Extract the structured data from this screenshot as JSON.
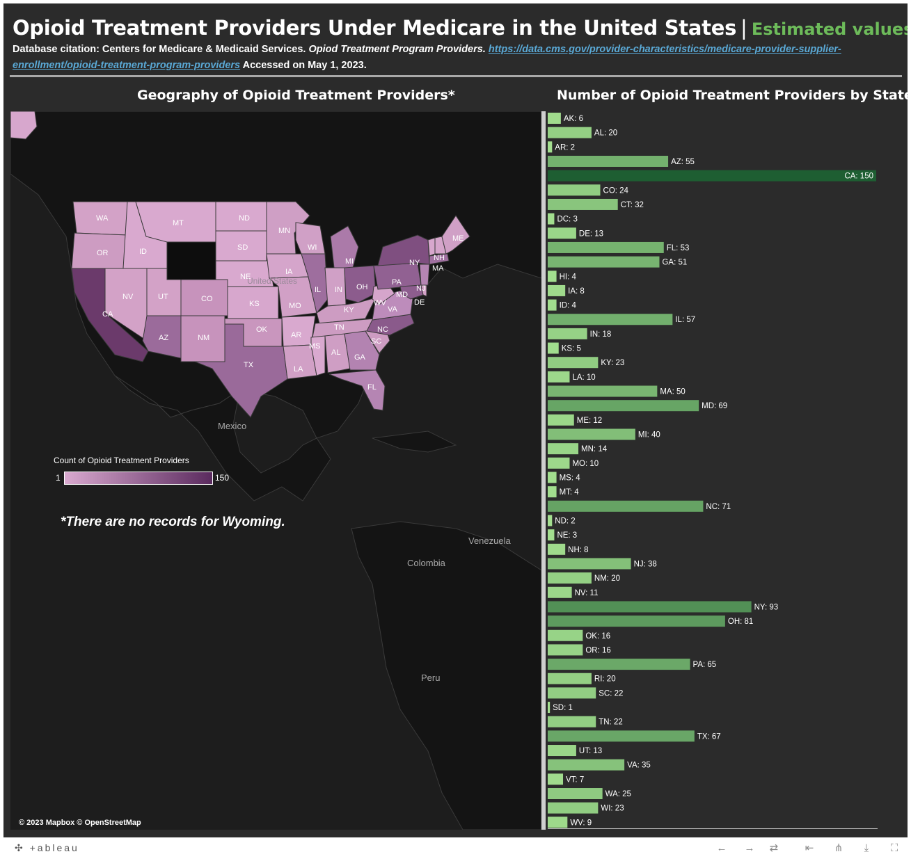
{
  "header": {
    "title": "Opioid Treatment Providers Under Medicare in the United States",
    "separator": "|",
    "subtitle": "Estimated values only",
    "subtitle_color": "#6dbb5a",
    "citation_prefix": "Database citation: Centers for Medicare & Medicaid Services.",
    "citation_italic": "Opiod Treatment Program Providers.",
    "citation_link": "https://data.cms.gov/provider-characteristics/medicare-provider-supplier-enrollment/opioid-treatment-program-providers",
    "citation_suffix": "Accessed on May 1, 2023."
  },
  "map": {
    "title": "Geography of Opioid Treatment Providers*",
    "legend_title": "Count of Opioid Treatment Providers",
    "legend_min": "1",
    "legend_max": "150",
    "color_low": "#d9a9cf",
    "color_high": "#5a2a5e",
    "note": "*There are no records for Wyoming.",
    "copyright": "© 2023 Mapbox  © OpenStreetMap",
    "place_labels": [
      "Mexico",
      "Venezuela",
      "Colombia",
      "Peru",
      "United States"
    ]
  },
  "chart_data": {
    "type": "bar",
    "orientation": "horizontal",
    "title": "Number of Opioid Treatment Providers by State",
    "categories": [
      "AK",
      "AL",
      "AR",
      "AZ",
      "CA",
      "CO",
      "CT",
      "DC",
      "DE",
      "FL",
      "GA",
      "HI",
      "IA",
      "ID",
      "IL",
      "IN",
      "KS",
      "KY",
      "LA",
      "MA",
      "MD",
      "ME",
      "MI",
      "MN",
      "MO",
      "MS",
      "MT",
      "NC",
      "ND",
      "NE",
      "NH",
      "NJ",
      "NM",
      "NV",
      "NY",
      "OH",
      "OK",
      "OR",
      "PA",
      "RI",
      "SC",
      "SD",
      "TN",
      "TX",
      "UT",
      "VA",
      "VT",
      "WA",
      "WI",
      "WV"
    ],
    "values": [
      6,
      20,
      2,
      55,
      150,
      24,
      32,
      3,
      13,
      53,
      51,
      4,
      8,
      4,
      57,
      18,
      5,
      23,
      10,
      50,
      69,
      12,
      40,
      14,
      10,
      4,
      4,
      71,
      2,
      3,
      8,
      38,
      20,
      11,
      93,
      81,
      16,
      16,
      65,
      20,
      22,
      1,
      22,
      67,
      13,
      35,
      7,
      25,
      23,
      9
    ],
    "xlim": [
      0,
      150
    ],
    "color_low": "#a6e191",
    "color_high": "#1e5e32"
  },
  "toolbar": {
    "logo": "+ableau",
    "undo_icon": "←",
    "redo_icon": "→",
    "revert_icon": "⇄",
    "reset_icon": "⇤",
    "share_icon": "⋔",
    "download_icon": "⤓",
    "fullscreen_icon": "⛶"
  }
}
